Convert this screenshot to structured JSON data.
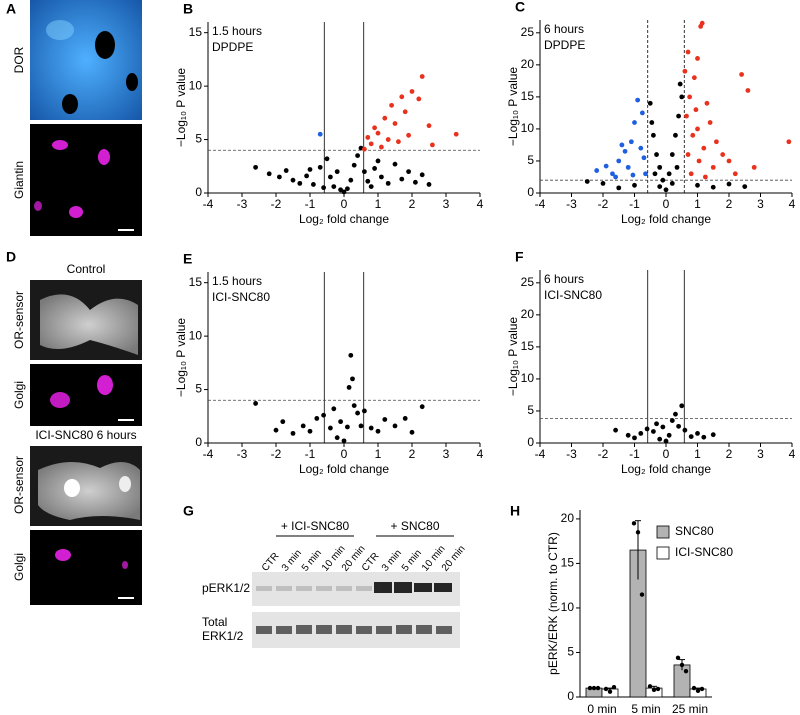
{
  "figure": {
    "A": {
      "panel": "A",
      "labels": [
        "DOR",
        "Giantin"
      ]
    },
    "D": {
      "panel": "D",
      "images": [
        "Control",
        "ICI-SNC80 6 hours"
      ],
      "labels": [
        "OR-sensor",
        "Golgi",
        "OR-sensor",
        "Golgi"
      ]
    },
    "G": {
      "panel": "G",
      "groups": [
        "+ ICI-SNC80",
        "+ SNC80"
      ],
      "lanes": [
        "CTR",
        "3 min",
        "5 min",
        "10 min",
        "20 min",
        "CTR",
        "3 min",
        "5 min",
        "10 min",
        "20 min"
      ],
      "rows": [
        [
          "pERK1/2"
        ],
        [
          "Total",
          "ERK1/2"
        ]
      ]
    }
  },
  "chart_data": [
    {
      "type": "scatter",
      "panel": "B",
      "annotation": [
        "1.5 hours",
        "DPDPE"
      ],
      "xlabel": "Log₂ fold change",
      "ylabel": "−Log₁₀ P value",
      "xlim": [
        -4,
        4
      ],
      "xticks": [
        -4,
        -3,
        -2,
        -1,
        0,
        1,
        2,
        3,
        4
      ],
      "ylim": [
        0,
        16
      ],
      "yticks": [
        0,
        5,
        10,
        15
      ],
      "vlines": [
        -0.58,
        0.58
      ],
      "vline_style": "solid",
      "hline": 4,
      "hline_style": "dashed",
      "series": [
        {
          "color": "#000000",
          "x": [
            -2.6,
            -2.2,
            -1.9,
            -1.7,
            -1.5,
            -1.3,
            -1.1,
            -0.9,
            -0.7,
            -0.5,
            -0.4,
            -0.3,
            -0.2,
            -0.1,
            0,
            0.1,
            0.2,
            0.3,
            0.4,
            0.5,
            0.6,
            0.7,
            0.9,
            1.1,
            1.3,
            1.5,
            1.7,
            1.9,
            2.1,
            2.3,
            2.5,
            -0.6,
            0.8,
            1.0,
            -1.0
          ],
          "values": [
            2.4,
            1.8,
            1.5,
            2.1,
            1.2,
            0.9,
            1.6,
            0.8,
            2.4,
            3.2,
            1.5,
            0.6,
            2.0,
            0.3,
            0.1,
            0.4,
            1.2,
            2.6,
            3.5,
            4.2,
            2.0,
            1.1,
            2.3,
            1.5,
            0.9,
            2.7,
            1.3,
            2.0,
            1.0,
            1.7,
            0.8,
            0.5,
            0.6,
            3.0,
            2.2
          ]
        },
        {
          "color": "#e8321e",
          "x": [
            0.6,
            0.7,
            0.8,
            0.9,
            1.0,
            1.1,
            1.2,
            1.3,
            1.4,
            1.5,
            1.6,
            1.7,
            1.8,
            1.9,
            2.0,
            2.2,
            2.3,
            2.5,
            2.6,
            3.3
          ],
          "values": [
            4.1,
            5.2,
            4.6,
            6.1,
            5.6,
            4.3,
            7.0,
            5.0,
            8.2,
            6.5,
            4.8,
            9.0,
            7.6,
            5.4,
            9.5,
            8.8,
            10.9,
            6.3,
            4.5,
            5.5
          ]
        },
        {
          "color": "#1f5fe0",
          "x": [
            -0.7
          ],
          "values": [
            5.5
          ]
        }
      ]
    },
    {
      "type": "scatter",
      "panel": "C",
      "annotation": [
        "6 hours",
        "DPDPE"
      ],
      "xlabel": "Log₂ fold change",
      "ylabel": "−Log₁₀ P value",
      "xlim": [
        -4,
        4
      ],
      "xticks": [
        -4,
        -3,
        -2,
        -1,
        0,
        1,
        2,
        3,
        4
      ],
      "ylim": [
        0,
        27
      ],
      "yticks": [
        0,
        5,
        10,
        15,
        20,
        25
      ],
      "vlines": [
        -0.58,
        0.58
      ],
      "vline_style": "dashed",
      "hline": 2,
      "hline_style": "dashed",
      "series": [
        {
          "color": "#000000",
          "x": [
            -2.5,
            -2.0,
            -1.5,
            -1.0,
            -0.5,
            -0.45,
            -0.4,
            -0.35,
            -0.3,
            -0.2,
            -0.2,
            -0.1,
            0,
            0.1,
            0.2,
            0.2,
            0.3,
            0.35,
            0.4,
            0.45,
            0.5,
            1.0,
            1.5,
            2.0,
            2.5
          ],
          "values": [
            1.8,
            1.5,
            0.8,
            1.2,
            14,
            11,
            9,
            3,
            6,
            4,
            1,
            2,
            0.5,
            3,
            6,
            1.5,
            9,
            4,
            12,
            17,
            15,
            1.2,
            0.9,
            1.4,
            1.0
          ]
        },
        {
          "color": "#1f5fe0",
          "x": [
            -2.2,
            -1.9,
            -1.7,
            -1.6,
            -1.5,
            -1.4,
            -1.3,
            -1.2,
            -1.1,
            -1.05,
            -1.0,
            -0.9,
            -0.8,
            -0.75,
            -0.7,
            -0.65
          ],
          "values": [
            3.5,
            4.2,
            3.0,
            2.5,
            5.0,
            7.5,
            6.5,
            4.0,
            8.0,
            2.8,
            11.0,
            14.5,
            7.0,
            12.5,
            5.5,
            3.0
          ]
        },
        {
          "color": "#e8321e",
          "x": [
            0.6,
            0.65,
            0.7,
            0.7,
            0.75,
            0.8,
            0.85,
            0.9,
            0.95,
            1.0,
            1.0,
            1.05,
            1.1,
            1.15,
            1.2,
            1.25,
            1.3,
            1.4,
            1.5,
            1.6,
            1.8,
            2.0,
            2.2,
            2.4,
            2.6,
            2.8,
            3.9
          ],
          "values": [
            19,
            12,
            6,
            22,
            15,
            3,
            9,
            18,
            13,
            10,
            21,
            5,
            26,
            26.5,
            7,
            2.5,
            14,
            11,
            4,
            8,
            6,
            5,
            3,
            18.5,
            16,
            4,
            8
          ]
        }
      ]
    },
    {
      "type": "scatter",
      "panel": "E",
      "annotation": [
        "1.5 hours",
        "ICI-SNC80"
      ],
      "xlabel": "Log₂ fold change",
      "ylabel": "−Log₁₀ P value",
      "xlim": [
        -4,
        4
      ],
      "xticks": [
        -4,
        -3,
        -2,
        -1,
        0,
        1,
        2,
        3,
        4
      ],
      "ylim": [
        0,
        16
      ],
      "yticks": [
        0,
        5,
        10,
        15
      ],
      "vlines": [
        -0.58,
        0.58
      ],
      "vline_style": "solid",
      "hline": 4,
      "hline_style": "dashed",
      "series": [
        {
          "color": "#000000",
          "x": [
            -2.6,
            -2.0,
            -1.8,
            -1.5,
            -1.2,
            -1.0,
            -0.8,
            -0.6,
            -0.4,
            -0.3,
            -0.2,
            -0.1,
            0,
            0.1,
            0.15,
            0.2,
            0.25,
            0.3,
            0.4,
            0.5,
            0.6,
            0.8,
            1.0,
            1.2,
            1.5,
            1.8,
            2.0,
            2.3
          ],
          "values": [
            3.7,
            1.2,
            2.0,
            0.9,
            1.6,
            1.1,
            2.3,
            2.6,
            1.4,
            3.2,
            0.5,
            2.0,
            0.2,
            1.5,
            5.2,
            8.2,
            6.0,
            3.5,
            2.8,
            1.6,
            3.0,
            1.4,
            1.1,
            2.2,
            1.6,
            2.3,
            1.0,
            3.4
          ]
        }
      ]
    },
    {
      "type": "scatter",
      "panel": "F",
      "annotation": [
        "6 hours",
        "ICI-SNC80"
      ],
      "xlabel": "Log₂ fold change",
      "ylabel": "−Log₁₀ P value",
      "xlim": [
        -4,
        4
      ],
      "xticks": [
        -4,
        -3,
        -2,
        -1,
        0,
        1,
        2,
        3,
        4
      ],
      "ylim": [
        0,
        27
      ],
      "yticks": [
        0,
        5,
        10,
        15,
        20,
        25
      ],
      "vlines": [
        -0.58,
        0.58
      ],
      "vline_style": "solid",
      "hline": 3.8,
      "hline_style": "dashed",
      "series": [
        {
          "color": "#000000",
          "x": [
            -1.6,
            -1.2,
            -1.0,
            -0.8,
            -0.6,
            -0.4,
            -0.3,
            -0.2,
            -0.1,
            0,
            0.1,
            0.2,
            0.3,
            0.4,
            0.5,
            0.6,
            0.8,
            1.0,
            1.2,
            1.5
          ],
          "values": [
            2.0,
            1.2,
            0.8,
            1.5,
            2.2,
            1.8,
            3.0,
            0.6,
            2.5,
            0.3,
            1.2,
            3.5,
            4.5,
            2.6,
            5.8,
            2.0,
            1.0,
            1.5,
            0.9,
            1.3
          ]
        }
      ]
    },
    {
      "type": "bar",
      "panel": "H",
      "ylabel": "pERK/ERK (norm. to CTR)",
      "categories": [
        "0 min",
        "5 min",
        "25 min"
      ],
      "ylim": [
        0,
        21
      ],
      "yticks": [
        0,
        5,
        10,
        15,
        20
      ],
      "legend": "upper right",
      "series": [
        {
          "name": "SNC80",
          "color": "#b3b3b3",
          "values": [
            1,
            16.5,
            3.6
          ],
          "errors": [
            0.05,
            3.3,
            0.6
          ],
          "points": [
            [
              1,
              1,
              1
            ],
            [
              19.5,
              18.5,
              11.5
            ],
            [
              4.4,
              3.6,
              2.9
            ]
          ]
        },
        {
          "name": "ICI-SNC80",
          "color": "#ffffff",
          "values": [
            0.9,
            1.0,
            0.9
          ],
          "errors": [
            0.1,
            0.2,
            0.1
          ],
          "points": [
            [
              0.9,
              0.6,
              1.1
            ],
            [
              1.2,
              0.8,
              0.9
            ],
            [
              1.0,
              0.7,
              0.9
            ]
          ]
        }
      ]
    }
  ]
}
